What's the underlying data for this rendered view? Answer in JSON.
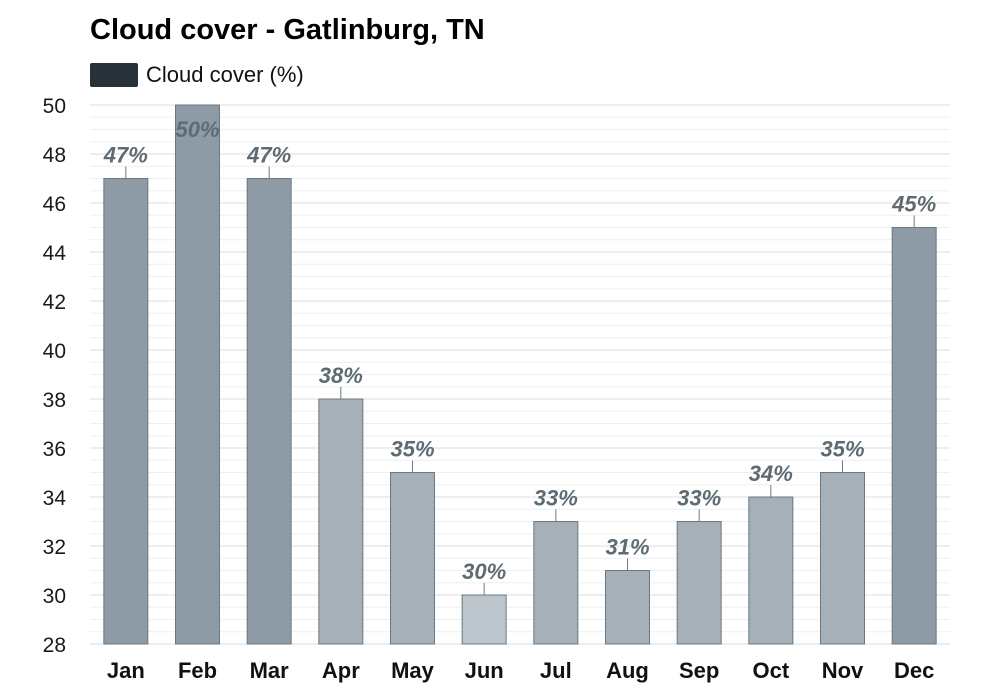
{
  "title": "Cloud cover - Gatlinburg, TN",
  "legend": {
    "label": "Cloud cover (%)",
    "color": "#263238"
  },
  "colors": {
    "label_text": "#5f6b73",
    "gridline": "#e6e6e6",
    "bar_stroke": "#6b7881",
    "levels": [
      "#bcc5cb",
      "#a5b0b8",
      "#8e9ba6"
    ]
  },
  "chart_data": {
    "type": "bar",
    "title": "Cloud cover - Gatlinburg, TN",
    "categories": [
      "Jan",
      "Feb",
      "Mar",
      "Apr",
      "May",
      "Jun",
      "Jul",
      "Aug",
      "Sep",
      "Oct",
      "Nov",
      "Dec"
    ],
    "series": [
      {
        "name": "Cloud cover (%)",
        "values": [
          47,
          50,
          47,
          38,
          35,
          30,
          33,
          31,
          33,
          34,
          35,
          45
        ]
      }
    ],
    "data_labels": [
      "47%",
      "50%",
      "47%",
      "38%",
      "35%",
      "30%",
      "33%",
      "31%",
      "33%",
      "34%",
      "35%",
      "45%"
    ],
    "yticks": [
      "28",
      "30",
      "32",
      "34",
      "36",
      "38",
      "40",
      "42",
      "44",
      "46",
      "48",
      "50"
    ],
    "ylim": [
      28,
      50
    ],
    "ytick_step": 2,
    "grid": true,
    "legend_position": "top-left",
    "xlabel": "",
    "ylabel": ""
  }
}
